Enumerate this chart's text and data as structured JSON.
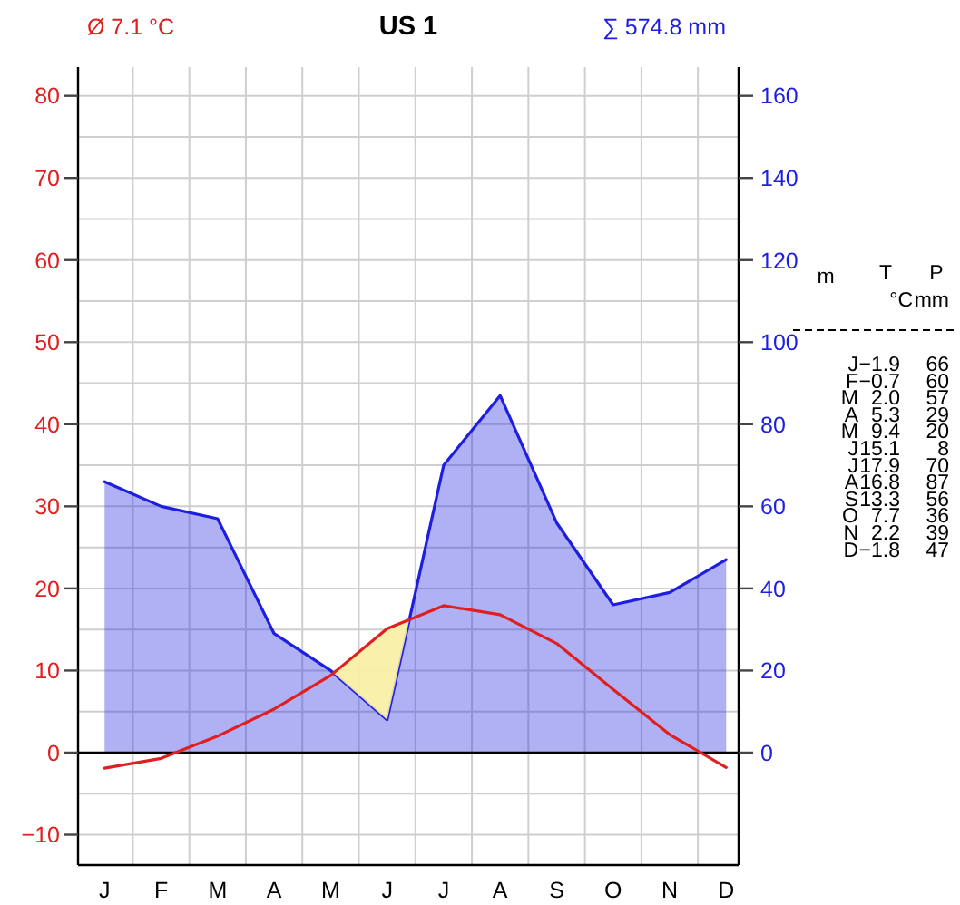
{
  "chart_data": {
    "type": "line",
    "title": "US 1",
    "annotations": [
      "Ø 7.1 °C",
      "∑ 574.8 mm",
      "m",
      "T",
      "°C",
      "P",
      "mm",
      "−1.9",
      "66",
      "−0.7",
      "60",
      "2.0",
      "57",
      "5.3",
      "29",
      "9.4",
      "20",
      "15.1",
      "8",
      "17.9",
      "70",
      "16.8",
      "87",
      "13.3",
      "56",
      "7.7",
      "36",
      "2.2",
      "39",
      "−1.8",
      "47"
    ],
    "categories": [
      "J",
      "F",
      "M",
      "A",
      "M",
      "J",
      "J",
      "A",
      "S",
      "O",
      "N",
      "D"
    ],
    "series": [
      {
        "type": "line",
        "color": "#e02020",
        "values": [
          -1.9,
          -0.7,
          2.0,
          5.3,
          9.4,
          15.1,
          17.9,
          16.8,
          13.3,
          7.7,
          2.2,
          -1.8
        ]
      },
      {
        "type": "area",
        "axis": "y2",
        "color": "#1e1ee0",
        "values": [
          66,
          60,
          57,
          29,
          20,
          8,
          70,
          87,
          56,
          36,
          39,
          47
        ]
      }
    ],
    "ylim": [
      -13.7,
      83.5
    ],
    "yticks": [
      -10,
      0,
      10,
      20,
      30,
      40,
      50,
      60,
      70,
      80
    ],
    "y2lim": [
      -27.4,
      167
    ],
    "y2ticks": [
      0,
      20,
      40,
      60,
      80,
      100,
      120,
      140,
      160
    ],
    "ref_lines": [
      {
        "axis": "y",
        "value": 0,
        "color": "#000000"
      }
    ],
    "grid": true
  }
}
